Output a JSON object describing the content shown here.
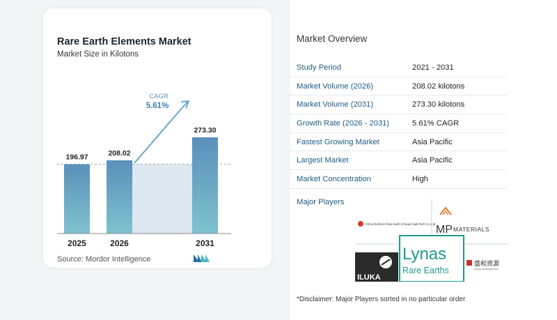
{
  "chart_data": {
    "type": "bar",
    "title": "Rare Earth Elements Market",
    "subtitle": "Market Size in Kilotons",
    "categories": [
      "2025",
      "2026",
      "2031"
    ],
    "values": [
      196.97,
      208.02,
      273.3
    ],
    "value_labels": [
      "196.97",
      "208.02",
      "273.30"
    ],
    "cagr_label": "CAGR",
    "cagr_value": "5.61%",
    "colors": {
      "bar_top": "#5a8fba",
      "bar_bottom": "#7fc3cf",
      "band": "#dde8f1",
      "arrow": "#6aa8c9",
      "baseline": "#8a8a8a"
    }
  },
  "source": "Source:  Mordor Intelligence",
  "logo_icon": "mordor-intelligence-logo",
  "overview": {
    "title": "Market Overview",
    "rows": [
      {
        "key": "Study Period",
        "value": "2021 - 2031"
      },
      {
        "key": "Market Volume (2026)",
        "value": "208.02 kilotons"
      },
      {
        "key": "Market Volume (2031)",
        "value": "273.30 kilotons"
      },
      {
        "key": "Growth Rate (2026 - 2031)",
        "value": "5.61% CAGR"
      },
      {
        "key": "Fastest Growing Market",
        "value": "Asia Pacific"
      },
      {
        "key": "Largest Market",
        "value": "Asia Pacific"
      },
      {
        "key": "Market Concentration",
        "value": "High"
      }
    ],
    "players_title": "Major Players",
    "players": {
      "china_northern": "China Northern Rare Earth (Group) High-Tech Co.,Ltd.",
      "mp": "MP",
      "mp_sub": "MATERIALS",
      "lynas": "Lynas",
      "lynas_sub": "Rare Earths",
      "iluka": "ILUKA",
      "shenghe": "盛和资源",
      "shenghe_sub": "SHENGHE RESOURCES"
    },
    "disclaimer": "*Disclaimer: Major Players sorted in no particular order"
  }
}
